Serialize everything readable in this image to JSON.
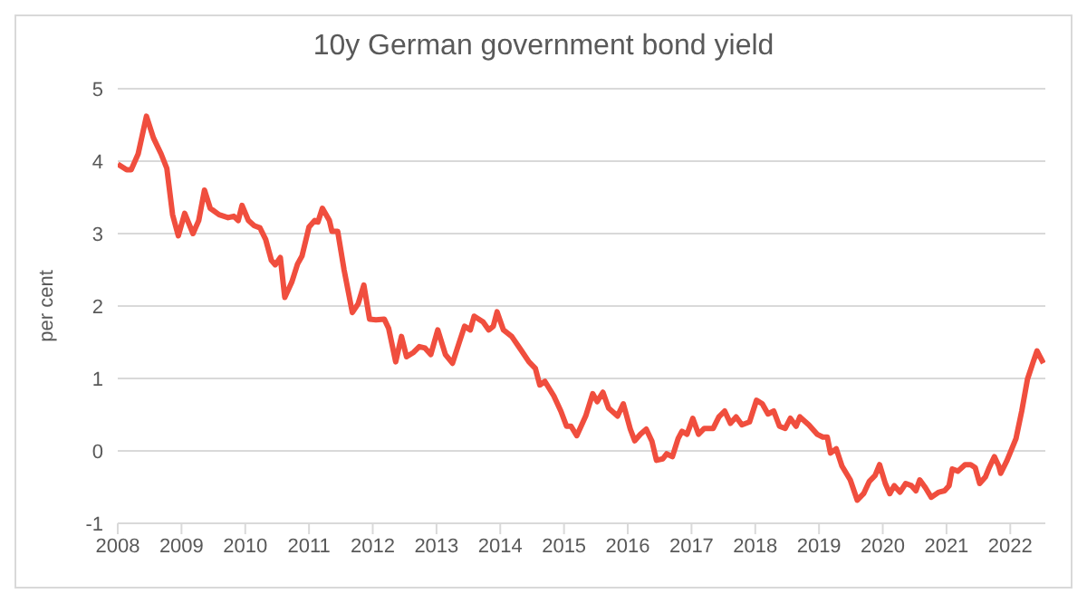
{
  "chart_data": {
    "type": "line",
    "title": "10y German government bond yield",
    "ylabel": "per cent",
    "x": [
      2008.0,
      2008.14,
      2008.21,
      2008.32,
      2008.45,
      2008.56,
      2008.68,
      2008.77,
      2008.86,
      2008.95,
      2009.05,
      2009.18,
      2009.27,
      2009.36,
      2009.45,
      2009.59,
      2009.73,
      2009.82,
      2009.89,
      2009.95,
      2010.05,
      2010.14,
      2010.23,
      2010.32,
      2010.41,
      2010.47,
      2010.55,
      2010.62,
      2010.73,
      2010.82,
      2010.89,
      2011.0,
      2011.09,
      2011.14,
      2011.21,
      2011.32,
      2011.36,
      2011.45,
      2011.55,
      2011.68,
      2011.77,
      2011.86,
      2011.95,
      2012.05,
      2012.18,
      2012.25,
      2012.36,
      2012.45,
      2012.53,
      2012.64,
      2012.73,
      2012.82,
      2012.91,
      2013.02,
      2013.14,
      2013.25,
      2013.35,
      2013.44,
      2013.53,
      2013.59,
      2013.73,
      2013.82,
      2013.89,
      2013.95,
      2014.05,
      2014.18,
      2014.32,
      2014.45,
      2014.55,
      2014.62,
      2014.7,
      2014.84,
      2014.95,
      2015.04,
      2015.11,
      2015.2,
      2015.34,
      2015.45,
      2015.52,
      2015.61,
      2015.7,
      2015.84,
      2015.93,
      2016.04,
      2016.11,
      2016.2,
      2016.29,
      2016.38,
      2016.45,
      2016.55,
      2016.61,
      2016.7,
      2016.79,
      2016.85,
      2016.93,
      2017.02,
      2017.11,
      2017.2,
      2017.34,
      2017.43,
      2017.52,
      2017.61,
      2017.7,
      2017.79,
      2017.91,
      2018.02,
      2018.11,
      2018.2,
      2018.29,
      2018.38,
      2018.47,
      2018.55,
      2018.64,
      2018.7,
      2018.84,
      2018.97,
      2019.06,
      2019.13,
      2019.18,
      2019.27,
      2019.36,
      2019.49,
      2019.6,
      2019.7,
      2019.79,
      2019.88,
      2019.95,
      2020.04,
      2020.11,
      2020.18,
      2020.27,
      2020.36,
      2020.45,
      2020.52,
      2020.58,
      2020.67,
      2020.76,
      2020.88,
      2020.97,
      2021.04,
      2021.09,
      2021.18,
      2021.29,
      2021.38,
      2021.45,
      2021.52,
      2021.61,
      2021.67,
      2021.75,
      2021.82,
      2021.85,
      2021.95,
      2022.09,
      2022.18,
      2022.27,
      2022.36,
      2022.42,
      2022.52
    ],
    "series": [
      {
        "color": "#f04e3e",
        "values": [
          3.96,
          3.88,
          3.88,
          4.1,
          4.62,
          4.32,
          4.1,
          3.9,
          3.26,
          2.97,
          3.28,
          3.0,
          3.18,
          3.6,
          3.35,
          3.26,
          3.22,
          3.24,
          3.18,
          3.39,
          3.18,
          3.11,
          3.08,
          2.92,
          2.63,
          2.57,
          2.67,
          2.12,
          2.33,
          2.58,
          2.69,
          3.09,
          3.18,
          3.16,
          3.35,
          3.18,
          3.03,
          3.03,
          2.5,
          1.91,
          2.03,
          2.29,
          1.82,
          1.81,
          1.82,
          1.69,
          1.23,
          1.58,
          1.3,
          1.36,
          1.44,
          1.42,
          1.33,
          1.67,
          1.33,
          1.21,
          1.48,
          1.72,
          1.67,
          1.86,
          1.78,
          1.67,
          1.72,
          1.92,
          1.67,
          1.58,
          1.4,
          1.23,
          1.14,
          0.91,
          0.96,
          0.76,
          0.55,
          0.34,
          0.34,
          0.21,
          0.48,
          0.79,
          0.68,
          0.81,
          0.59,
          0.48,
          0.65,
          0.3,
          0.14,
          0.23,
          0.3,
          0.13,
          -0.13,
          -0.11,
          -0.04,
          -0.08,
          0.17,
          0.27,
          0.23,
          0.45,
          0.23,
          0.31,
          0.31,
          0.47,
          0.55,
          0.38,
          0.47,
          0.36,
          0.4,
          0.7,
          0.65,
          0.51,
          0.55,
          0.34,
          0.31,
          0.45,
          0.34,
          0.47,
          0.36,
          0.23,
          0.19,
          0.19,
          -0.03,
          0.03,
          -0.21,
          -0.4,
          -0.68,
          -0.59,
          -0.42,
          -0.34,
          -0.19,
          -0.45,
          -0.59,
          -0.48,
          -0.57,
          -0.45,
          -0.48,
          -0.55,
          -0.4,
          -0.51,
          -0.64,
          -0.57,
          -0.55,
          -0.48,
          -0.25,
          -0.28,
          -0.19,
          -0.19,
          -0.23,
          -0.45,
          -0.36,
          -0.23,
          -0.08,
          -0.21,
          -0.31,
          -0.13,
          0.17,
          0.55,
          0.99,
          1.23,
          1.38,
          1.21
        ]
      }
    ],
    "xlim": [
      2008,
      2022.55
    ],
    "xticks": [
      2008,
      2009,
      2010,
      2011,
      2012,
      2013,
      2014,
      2015,
      2016,
      2017,
      2018,
      2019,
      2020,
      2021,
      2022
    ],
    "ylim": [
      -1,
      5
    ],
    "yticks": [
      -1,
      0,
      1,
      2,
      3,
      4,
      5
    ],
    "grid": "y",
    "legend": false,
    "marker": "none",
    "line_style": "solid"
  }
}
